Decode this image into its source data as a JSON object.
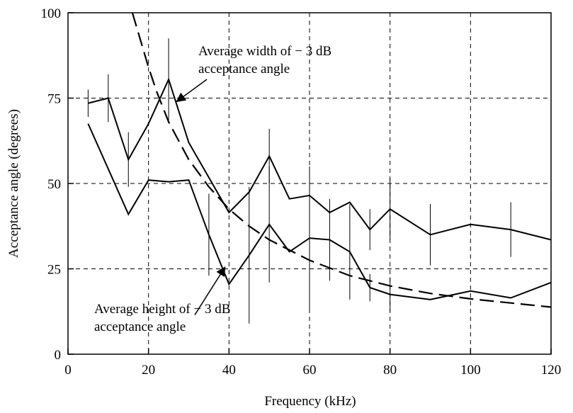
{
  "chart_data": {
    "type": "line",
    "title": "",
    "xlabel": "Frequency (kHz)",
    "ylabel": "Acceptance angle (degrees)",
    "xlim": [
      0,
      120
    ],
    "ylim": [
      0,
      100
    ],
    "x_ticks": [
      0,
      20,
      40,
      60,
      80,
      100,
      120
    ],
    "y_ticks": [
      0,
      25,
      50,
      75,
      100
    ],
    "grid": "dashed",
    "legend": "none",
    "series": [
      {
        "key": "width",
        "style": "solid",
        "x": [
          5,
          10,
          15,
          20,
          25,
          30,
          40,
          45,
          50,
          55,
          60,
          65,
          70,
          75,
          80,
          90,
          100,
          110,
          120
        ],
        "y": [
          73.5,
          75,
          57,
          67.5,
          80.5,
          62,
          41.5,
          47.5,
          58,
          45.5,
          46.5,
          41.5,
          44.5,
          36.5,
          42.5,
          35,
          38,
          36.5,
          33.5
        ],
        "error": [
          4,
          7,
          8,
          0,
          12,
          0,
          0,
          0,
          8,
          0,
          0,
          0,
          0,
          6,
          9,
          9,
          0,
          8,
          8
        ]
      },
      {
        "key": "height",
        "style": "solid",
        "x": [
          5,
          15,
          20,
          25,
          30,
          35,
          40,
          45,
          50,
          55,
          60,
          65,
          70,
          75,
          80,
          90,
          100,
          110,
          120
        ],
        "y": [
          67.5,
          41,
          51,
          50.5,
          51,
          35,
          20.5,
          29,
          38,
          30,
          34,
          33.5,
          30,
          19.5,
          17.5,
          16,
          18.5,
          16.5,
          21
        ],
        "error": [
          0,
          0,
          0,
          0,
          0,
          12,
          0,
          20,
          17,
          0,
          21,
          12,
          14,
          4,
          5,
          0,
          0,
          0,
          0
        ]
      },
      {
        "key": "model",
        "style": "dashed",
        "x": [
          16,
          18,
          20,
          22,
          25,
          30,
          35,
          40,
          45,
          50,
          60,
          70,
          80,
          90,
          100,
          110,
          120
        ],
        "y": [
          100,
          92,
          84,
          77,
          68,
          57,
          49,
          42.5,
          37.5,
          33.5,
          27.5,
          23,
          20,
          17.8,
          16.2,
          15,
          13.8
        ]
      }
    ],
    "annotations": [
      {
        "line1": "Average width of − 3 dB",
        "line2": "acceptance angle",
        "arrow_from": [
          34.5,
          80.5
        ],
        "arrow_to": [
          27,
          74
        ]
      },
      {
        "line1": "Average height of − 3 dB",
        "line2": "acceptance angle",
        "arrow_from": [
          31.5,
          11.5
        ],
        "arrow_to": [
          39,
          25.5
        ]
      }
    ]
  }
}
